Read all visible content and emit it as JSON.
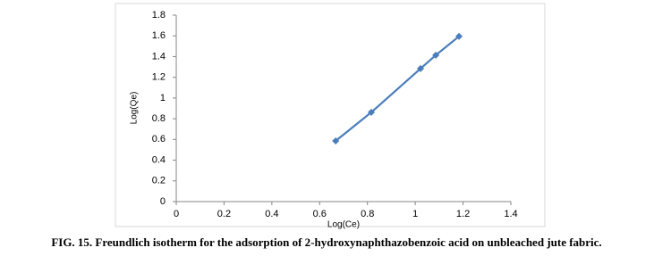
{
  "chart_data": {
    "type": "line",
    "x": [
      0.667,
      0.816,
      1.022,
      1.086,
      1.183
    ],
    "values": [
      0.586,
      0.862,
      1.284,
      1.414,
      1.595
    ],
    "color": "#4a7ebb",
    "xlabel": "Log(Ce)",
    "ylabel": "Log(Qe)",
    "xlim": [
      0,
      1.4
    ],
    "xticks": [
      0,
      0.2,
      0.4,
      0.6,
      0.8,
      1,
      1.2,
      1.4
    ],
    "ylim": [
      0,
      1.8
    ],
    "yticks": [
      0,
      0.2,
      0.4,
      0.6,
      0.8,
      1,
      1.2,
      1.4,
      1.6,
      1.8
    ],
    "grid": false,
    "caption": "FIG. 15. Freundlich isotherm for the adsorption of 2-hydroxynaphthazobenzoic acid on unbleached jute fabric."
  }
}
